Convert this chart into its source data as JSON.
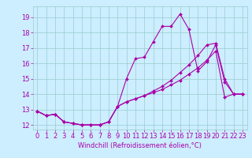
{
  "xlabel": "Windchill (Refroidissement éolien,°C)",
  "bg_color": "#cceeff",
  "grid_color": "#99cccc",
  "line_color": "#aa00aa",
  "xlim": [
    -0.5,
    23.5
  ],
  "ylim": [
    11.7,
    19.7
  ],
  "yticks": [
    12,
    13,
    14,
    15,
    16,
    17,
    18,
    19
  ],
  "xticks": [
    0,
    1,
    2,
    3,
    4,
    5,
    6,
    7,
    8,
    9,
    10,
    11,
    12,
    13,
    14,
    15,
    16,
    17,
    18,
    19,
    20,
    21,
    22,
    23
  ],
  "line1_x": [
    0,
    1,
    2,
    3,
    4,
    5,
    6,
    7,
    8,
    9,
    10,
    11,
    12,
    13,
    14,
    15,
    16,
    17,
    18,
    19,
    20,
    21,
    22,
    23
  ],
  "line1_y": [
    12.9,
    12.6,
    12.7,
    12.2,
    12.1,
    12.0,
    12.0,
    12.0,
    12.2,
    13.2,
    15.0,
    16.3,
    16.4,
    17.4,
    18.4,
    18.4,
    19.2,
    18.2,
    15.5,
    16.1,
    17.2,
    14.8,
    14.0,
    14.0
  ],
  "line2_x": [
    0,
    1,
    2,
    3,
    4,
    5,
    6,
    7,
    8,
    9,
    10,
    11,
    12,
    13,
    14,
    15,
    16,
    17,
    18,
    19,
    20,
    21,
    22,
    23
  ],
  "line2_y": [
    12.9,
    12.6,
    12.7,
    12.2,
    12.1,
    12.0,
    12.0,
    12.0,
    12.2,
    13.2,
    13.5,
    13.7,
    13.9,
    14.1,
    14.3,
    14.6,
    14.9,
    15.3,
    15.7,
    16.2,
    16.8,
    13.8,
    14.0,
    14.0
  ],
  "line3_x": [
    0,
    1,
    2,
    3,
    4,
    5,
    6,
    7,
    8,
    9,
    10,
    11,
    12,
    13,
    14,
    15,
    16,
    17,
    18,
    19,
    20,
    21,
    22,
    23
  ],
  "line3_y": [
    12.9,
    12.6,
    12.7,
    12.2,
    12.1,
    12.0,
    12.0,
    12.0,
    12.2,
    13.2,
    13.5,
    13.7,
    13.9,
    14.2,
    14.5,
    14.9,
    15.4,
    15.9,
    16.5,
    17.2,
    17.3,
    15.0,
    14.0,
    14.0
  ],
  "tick_fontsize": 6,
  "xlabel_fontsize": 6
}
